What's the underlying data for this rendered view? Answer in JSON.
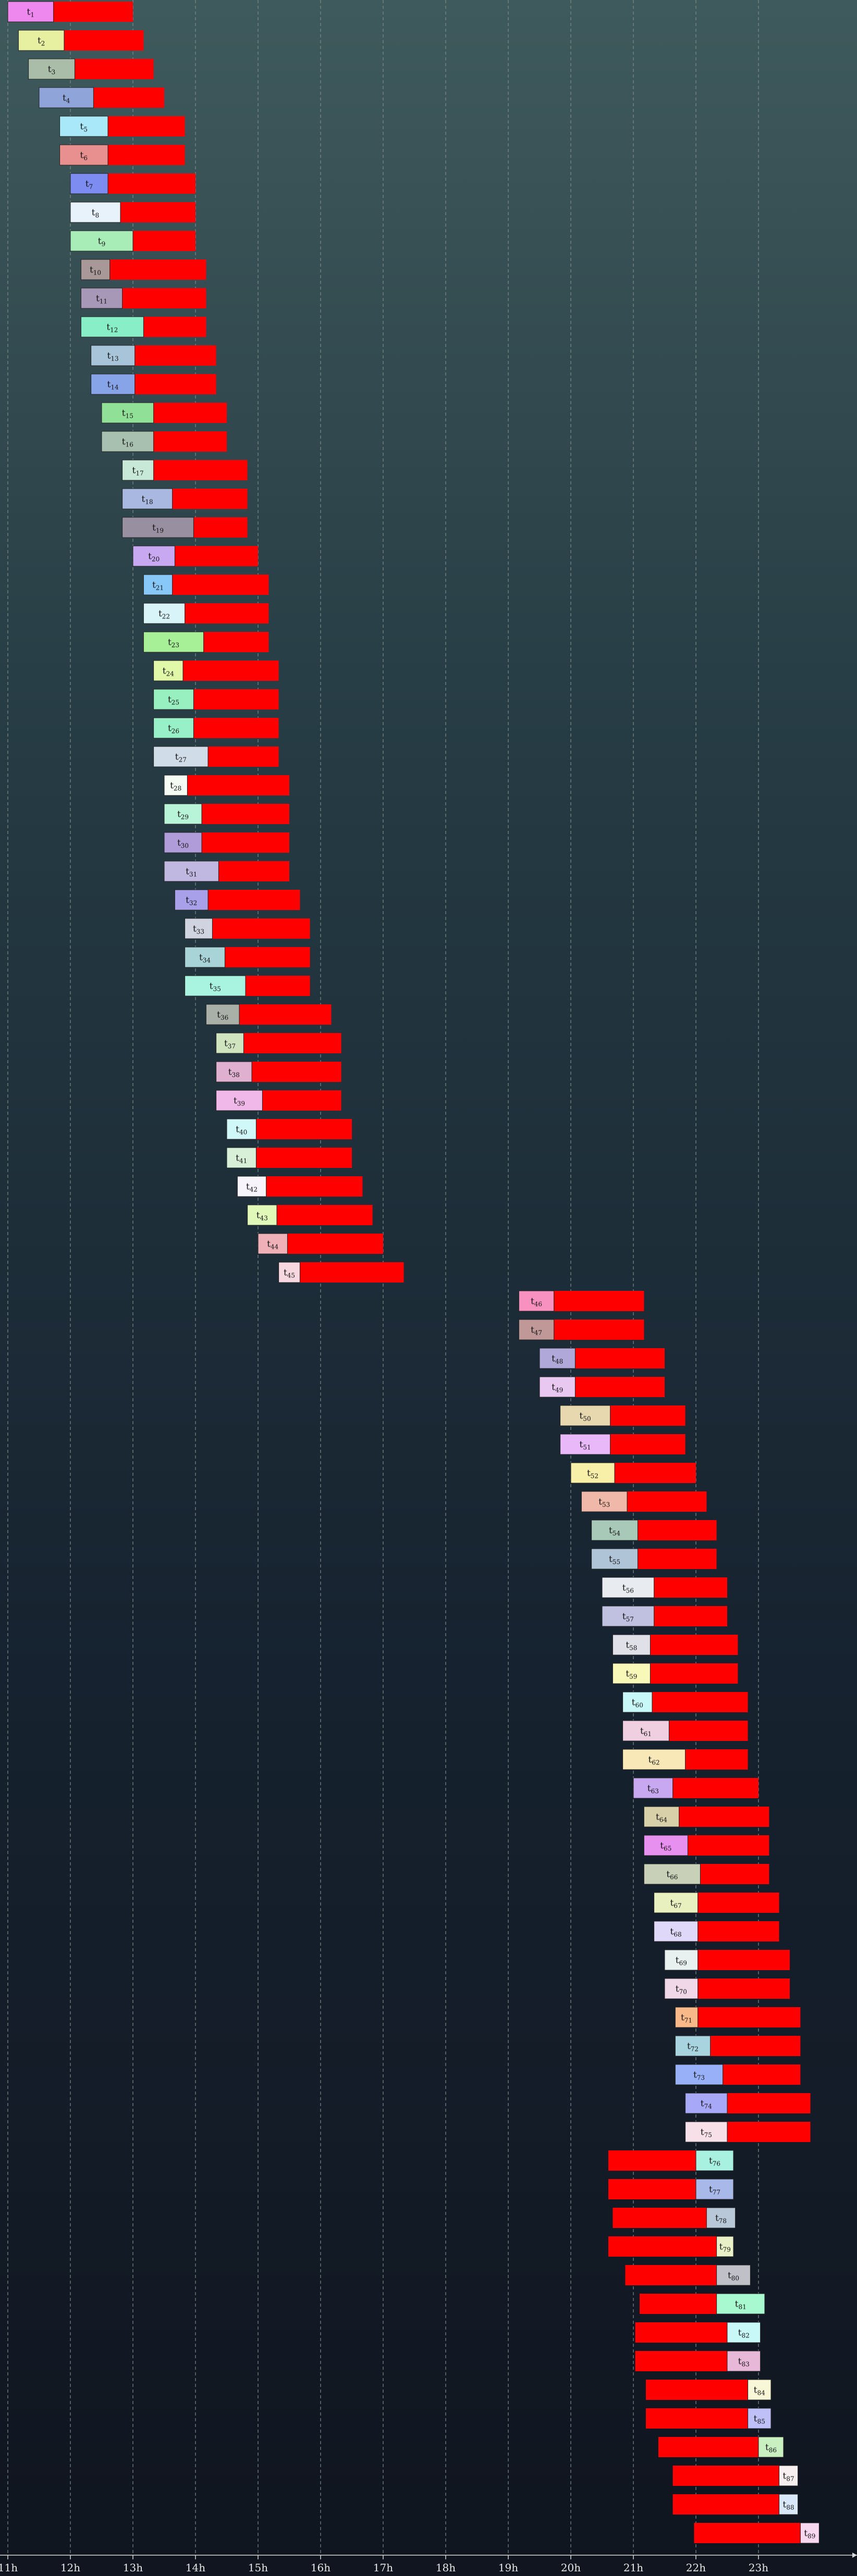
{
  "chart_data": {
    "type": "gantt",
    "title": "",
    "xlabel": "",
    "ylabel": "",
    "x_axis": {
      "unit": "hour of day",
      "range": [
        11,
        24.5
      ],
      "ticks": [
        11,
        12,
        13,
        14,
        15,
        16,
        17,
        18,
        19,
        20,
        21,
        22,
        23
      ],
      "tick_labels": [
        "11h",
        "12h",
        "13h",
        "14h",
        "15h",
        "16h",
        "17h",
        "18h",
        "19h",
        "20h",
        "21h",
        "22h",
        "23h"
      ],
      "grid": true
    },
    "colors": {
      "delay_bar": "#ff0000",
      "grid": "#7f8c8c",
      "axis": "#d8d8d8"
    },
    "task_prefix": "t",
    "tasks": [
      {
        "id": "1",
        "label_start": 11.0,
        "label_end": 11.73,
        "bar_start": 11.73,
        "bar_end": 13.0,
        "color": "#ee88ee"
      },
      {
        "id": "2",
        "label_start": 11.17,
        "label_end": 11.9,
        "bar_start": 11.9,
        "bar_end": 13.17,
        "color": "#e6f0a0"
      },
      {
        "id": "3",
        "label_start": 11.33,
        "label_end": 12.07,
        "bar_start": 12.07,
        "bar_end": 13.33,
        "color": "#a9bda8"
      },
      {
        "id": "4",
        "label_start": 11.5,
        "label_end": 12.37,
        "bar_start": 12.37,
        "bar_end": 13.5,
        "color": "#8fa4d8"
      },
      {
        "id": "5",
        "label_start": 11.83,
        "label_end": 12.6,
        "bar_start": 12.6,
        "bar_end": 13.83,
        "color": "#a8e8f8"
      },
      {
        "id": "6",
        "label_start": 11.83,
        "label_end": 12.6,
        "bar_start": 12.6,
        "bar_end": 13.83,
        "color": "#e89090"
      },
      {
        "id": "7",
        "label_start": 12.0,
        "label_end": 12.6,
        "bar_start": 12.6,
        "bar_end": 14.0,
        "color": "#7c8cf0"
      },
      {
        "id": "8",
        "label_start": 12.0,
        "label_end": 12.8,
        "bar_start": 12.8,
        "bar_end": 14.0,
        "color": "#e8f2fa"
      },
      {
        "id": "9",
        "label_start": 12.0,
        "label_end": 13.0,
        "bar_start": 13.0,
        "bar_end": 14.0,
        "color": "#a8ecb8"
      },
      {
        "id": "10",
        "label_start": 12.17,
        "label_end": 12.63,
        "bar_start": 12.63,
        "bar_end": 14.17,
        "color": "#a89898"
      },
      {
        "id": "11",
        "label_start": 12.17,
        "label_end": 12.83,
        "bar_start": 12.83,
        "bar_end": 14.17,
        "color": "#a898b8"
      },
      {
        "id": "12",
        "label_start": 12.17,
        "label_end": 13.17,
        "bar_start": 13.17,
        "bar_end": 14.17,
        "color": "#88eec8"
      },
      {
        "id": "13",
        "label_start": 12.33,
        "label_end": 13.03,
        "bar_start": 13.03,
        "bar_end": 14.33,
        "color": "#a8c4d8"
      },
      {
        "id": "14",
        "label_start": 12.33,
        "label_end": 13.03,
        "bar_start": 13.03,
        "bar_end": 14.33,
        "color": "#88a4e8"
      },
      {
        "id": "15",
        "label_start": 12.5,
        "label_end": 13.33,
        "bar_start": 13.33,
        "bar_end": 14.5,
        "color": "#90e098"
      },
      {
        "id": "16",
        "label_start": 12.5,
        "label_end": 13.33,
        "bar_start": 13.33,
        "bar_end": 14.5,
        "color": "#a8c0b0"
      },
      {
        "id": "17",
        "label_start": 12.83,
        "label_end": 13.33,
        "bar_start": 13.33,
        "bar_end": 14.83,
        "color": "#c8e8d8"
      },
      {
        "id": "18",
        "label_start": 12.83,
        "label_end": 13.63,
        "bar_start": 13.63,
        "bar_end": 14.83,
        "color": "#a8b8e0"
      },
      {
        "id": "19",
        "label_start": 12.83,
        "label_end": 13.97,
        "bar_start": 13.97,
        "bar_end": 14.83,
        "color": "#9890a0"
      },
      {
        "id": "20",
        "label_start": 13.0,
        "label_end": 13.67,
        "bar_start": 13.67,
        "bar_end": 15.0,
        "color": "#c8a8f0"
      },
      {
        "id": "21",
        "label_start": 13.17,
        "label_end": 13.63,
        "bar_start": 13.63,
        "bar_end": 15.17,
        "color": "#88c8f8"
      },
      {
        "id": "22",
        "label_start": 13.17,
        "label_end": 13.83,
        "bar_start": 13.83,
        "bar_end": 15.17,
        "color": "#d8f4f8"
      },
      {
        "id": "23",
        "label_start": 13.17,
        "label_end": 14.13,
        "bar_start": 14.13,
        "bar_end": 15.17,
        "color": "#a8f098"
      },
      {
        "id": "24",
        "label_start": 13.33,
        "label_end": 13.8,
        "bar_start": 13.8,
        "bar_end": 15.33,
        "color": "#e0f8a8"
      },
      {
        "id": "25",
        "label_start": 13.33,
        "label_end": 13.97,
        "bar_start": 13.97,
        "bar_end": 15.33,
        "color": "#98f0c0"
      },
      {
        "id": "26",
        "label_start": 13.33,
        "label_end": 13.97,
        "bar_start": 13.97,
        "bar_end": 15.33,
        "color": "#98f0c8"
      },
      {
        "id": "27",
        "label_start": 13.33,
        "label_end": 14.2,
        "bar_start": 14.2,
        "bar_end": 15.33,
        "color": "#d0dce8"
      },
      {
        "id": "28",
        "label_start": 13.5,
        "label_end": 13.87,
        "bar_start": 13.87,
        "bar_end": 15.5,
        "color": "#f4fcf4"
      },
      {
        "id": "29",
        "label_start": 13.5,
        "label_end": 14.1,
        "bar_start": 14.1,
        "bar_end": 15.5,
        "color": "#b8f4d8"
      },
      {
        "id": "30",
        "label_start": 13.5,
        "label_end": 14.1,
        "bar_start": 14.1,
        "bar_end": 15.5,
        "color": "#b09cd8"
      },
      {
        "id": "31",
        "label_start": 13.5,
        "label_end": 14.37,
        "bar_start": 14.37,
        "bar_end": 15.5,
        "color": "#c0b8e0"
      },
      {
        "id": "32",
        "label_start": 13.67,
        "label_end": 14.2,
        "bar_start": 14.2,
        "bar_end": 15.67,
        "color": "#a8a0e8"
      },
      {
        "id": "33",
        "label_start": 13.83,
        "label_end": 14.27,
        "bar_start": 14.27,
        "bar_end": 15.83,
        "color": "#d0d4e0"
      },
      {
        "id": "34",
        "label_start": 13.83,
        "label_end": 14.47,
        "bar_start": 14.47,
        "bar_end": 15.83,
        "color": "#a8d4d8"
      },
      {
        "id": "35",
        "label_start": 13.83,
        "label_end": 14.8,
        "bar_start": 14.8,
        "bar_end": 15.83,
        "color": "#a8f4e0"
      },
      {
        "id": "36",
        "label_start": 14.17,
        "label_end": 14.7,
        "bar_start": 14.7,
        "bar_end": 16.17,
        "color": "#a8b0a8"
      },
      {
        "id": "37",
        "label_start": 14.33,
        "label_end": 14.77,
        "bar_start": 14.77,
        "bar_end": 16.33,
        "color": "#d0e4c0"
      },
      {
        "id": "38",
        "label_start": 14.33,
        "label_end": 14.9,
        "bar_start": 14.9,
        "bar_end": 16.33,
        "color": "#e0b0d0"
      },
      {
        "id": "39",
        "label_start": 14.33,
        "label_end": 15.07,
        "bar_start": 15.07,
        "bar_end": 16.33,
        "color": "#f0b8e8"
      },
      {
        "id": "40",
        "label_start": 14.5,
        "label_end": 14.97,
        "bar_start": 14.97,
        "bar_end": 16.5,
        "color": "#d0f8f8"
      },
      {
        "id": "41",
        "label_start": 14.5,
        "label_end": 14.97,
        "bar_start": 14.97,
        "bar_end": 16.5,
        "color": "#d8f0d8"
      },
      {
        "id": "42",
        "label_start": 14.67,
        "label_end": 15.13,
        "bar_start": 15.13,
        "bar_end": 16.67,
        "color": "#f8f4fc"
      },
      {
        "id": "43",
        "label_start": 14.83,
        "label_end": 15.3,
        "bar_start": 15.3,
        "bar_end": 16.83,
        "color": "#e0f8b8"
      },
      {
        "id": "44",
        "label_start": 15.0,
        "label_end": 15.47,
        "bar_start": 15.47,
        "bar_end": 17.0,
        "color": "#f0b0b8"
      },
      {
        "id": "45",
        "label_start": 15.33,
        "label_end": 15.67,
        "bar_start": 15.67,
        "bar_end": 17.33,
        "color": "#f8d8e0"
      },
      {
        "id": "46",
        "label_start": 19.17,
        "label_end": 19.73,
        "bar_start": 19.73,
        "bar_end": 21.17,
        "color": "#f890c0"
      },
      {
        "id": "47",
        "label_start": 19.17,
        "label_end": 19.73,
        "bar_start": 19.73,
        "bar_end": 21.17,
        "color": "#c09898"
      },
      {
        "id": "48",
        "label_start": 19.5,
        "label_end": 20.07,
        "bar_start": 20.07,
        "bar_end": 21.5,
        "color": "#b0a8d8"
      },
      {
        "id": "49",
        "label_start": 19.5,
        "label_end": 20.07,
        "bar_start": 20.07,
        "bar_end": 21.5,
        "color": "#e8c8f0"
      },
      {
        "id": "50",
        "label_start": 19.83,
        "label_end": 20.63,
        "bar_start": 20.63,
        "bar_end": 21.83,
        "color": "#e8d8b0"
      },
      {
        "id": "51",
        "label_start": 19.83,
        "label_end": 20.63,
        "bar_start": 20.63,
        "bar_end": 21.83,
        "color": "#e8b8f8"
      },
      {
        "id": "52",
        "label_start": 20.0,
        "label_end": 20.7,
        "bar_start": 20.7,
        "bar_end": 22.0,
        "color": "#f8f0a8"
      },
      {
        "id": "53",
        "label_start": 20.17,
        "label_end": 20.9,
        "bar_start": 20.9,
        "bar_end": 22.17,
        "color": "#f0b8a8"
      },
      {
        "id": "54",
        "label_start": 20.33,
        "label_end": 21.07,
        "bar_start": 21.07,
        "bar_end": 22.33,
        "color": "#a8c8b8"
      },
      {
        "id": "55",
        "label_start": 20.33,
        "label_end": 21.07,
        "bar_start": 21.07,
        "bar_end": 22.33,
        "color": "#b0c4d8"
      },
      {
        "id": "56",
        "label_start": 20.5,
        "label_end": 21.33,
        "bar_start": 21.33,
        "bar_end": 22.5,
        "color": "#e8ecf0"
      },
      {
        "id": "57",
        "label_start": 20.5,
        "label_end": 21.33,
        "bar_start": 21.33,
        "bar_end": 22.5,
        "color": "#c0c0e0"
      },
      {
        "id": "58",
        "label_start": 20.67,
        "label_end": 21.27,
        "bar_start": 21.27,
        "bar_end": 22.67,
        "color": "#e0e0e8"
      },
      {
        "id": "59",
        "label_start": 20.67,
        "label_end": 21.27,
        "bar_start": 21.27,
        "bar_end": 22.67,
        "color": "#f8f8b8"
      },
      {
        "id": "60",
        "label_start": 20.83,
        "label_end": 21.3,
        "bar_start": 21.3,
        "bar_end": 22.83,
        "color": "#c8f8f8"
      },
      {
        "id": "61",
        "label_start": 20.83,
        "label_end": 21.57,
        "bar_start": 21.57,
        "bar_end": 22.83,
        "color": "#f0d0e0"
      },
      {
        "id": "62",
        "label_start": 20.83,
        "label_end": 21.83,
        "bar_start": 21.83,
        "bar_end": 22.83,
        "color": "#f8e8b8"
      },
      {
        "id": "63",
        "label_start": 21.0,
        "label_end": 21.63,
        "bar_start": 21.63,
        "bar_end": 23.0,
        "color": "#c8a8f0"
      },
      {
        "id": "64",
        "label_start": 21.17,
        "label_end": 21.73,
        "bar_start": 21.73,
        "bar_end": 23.17,
        "color": "#d8d0a8"
      },
      {
        "id": "65",
        "label_start": 21.17,
        "label_end": 21.87,
        "bar_start": 21.87,
        "bar_end": 23.17,
        "color": "#e890f0"
      },
      {
        "id": "66",
        "label_start": 21.17,
        "label_end": 22.07,
        "bar_start": 22.07,
        "bar_end": 23.17,
        "color": "#c8d0b8"
      },
      {
        "id": "67",
        "label_start": 21.33,
        "label_end": 22.03,
        "bar_start": 22.03,
        "bar_end": 23.33,
        "color": "#e8f0c0"
      },
      {
        "id": "68",
        "label_start": 21.33,
        "label_end": 22.03,
        "bar_start": 22.03,
        "bar_end": 23.33,
        "color": "#e0d8f8"
      },
      {
        "id": "69",
        "label_start": 21.5,
        "label_end": 22.03,
        "bar_start": 22.03,
        "bar_end": 23.5,
        "color": "#e8f0f0"
      },
      {
        "id": "70",
        "label_start": 21.5,
        "label_end": 22.03,
        "bar_start": 22.03,
        "bar_end": 23.5,
        "color": "#f0d8e8"
      },
      {
        "id": "71",
        "label_start": 21.67,
        "label_end": 22.03,
        "bar_start": 22.03,
        "bar_end": 23.67,
        "color": "#f8b888"
      },
      {
        "id": "72",
        "label_start": 21.67,
        "label_end": 22.23,
        "bar_start": 22.23,
        "bar_end": 23.67,
        "color": "#a8d4e0"
      },
      {
        "id": "73",
        "label_start": 21.67,
        "label_end": 22.43,
        "bar_start": 22.43,
        "bar_end": 23.67,
        "color": "#98b0f8"
      },
      {
        "id": "74",
        "label_start": 21.83,
        "label_end": 22.5,
        "bar_start": 22.5,
        "bar_end": 23.83,
        "color": "#a8a8f8"
      },
      {
        "id": "75",
        "label_start": 21.83,
        "label_end": 22.5,
        "bar_start": 22.5,
        "bar_end": 23.83,
        "color": "#f8e0e8"
      },
      {
        "id": "76",
        "label_start": 22.0,
        "label_end": 22.6,
        "bar_start": 20.6,
        "bar_end": 22.0,
        "color": "#a8f0e0"
      },
      {
        "id": "77",
        "label_start": 22.0,
        "label_end": 22.6,
        "bar_start": 20.6,
        "bar_end": 22.0,
        "color": "#a8b8e8"
      },
      {
        "id": "78",
        "label_start": 22.17,
        "label_end": 22.63,
        "bar_start": 20.67,
        "bar_end": 22.17,
        "color": "#b8c8d8"
      },
      {
        "id": "79",
        "label_start": 22.33,
        "label_end": 22.6,
        "bar_start": 20.6,
        "bar_end": 22.33,
        "color": "#e8f0c8"
      },
      {
        "id": "80",
        "label_start": 22.33,
        "label_end": 22.87,
        "bar_start": 20.87,
        "bar_end": 22.33,
        "color": "#c0c0c8"
      },
      {
        "id": "81",
        "label_start": 22.33,
        "label_end": 23.1,
        "bar_start": 21.1,
        "bar_end": 22.33,
        "color": "#a8f8d0"
      },
      {
        "id": "82",
        "label_start": 22.5,
        "label_end": 23.03,
        "bar_start": 21.03,
        "bar_end": 22.5,
        "color": "#c8f8f8"
      },
      {
        "id": "83",
        "label_start": 22.5,
        "label_end": 23.03,
        "bar_start": 21.03,
        "bar_end": 22.5,
        "color": "#e8b8d8"
      },
      {
        "id": "84",
        "label_start": 22.83,
        "label_end": 23.2,
        "bar_start": 21.2,
        "bar_end": 22.83,
        "color": "#f8f8d8"
      },
      {
        "id": "85",
        "label_start": 22.83,
        "label_end": 23.2,
        "bar_start": 21.2,
        "bar_end": 22.83,
        "color": "#c0c0f8"
      },
      {
        "id": "86",
        "label_start": 23.0,
        "label_end": 23.4,
        "bar_start": 21.4,
        "bar_end": 23.0,
        "color": "#c8f0c0"
      },
      {
        "id": "87",
        "label_start": 23.33,
        "label_end": 23.63,
        "bar_start": 21.63,
        "bar_end": 23.33,
        "color": "#f8f0f0"
      },
      {
        "id": "88",
        "label_start": 23.33,
        "label_end": 23.63,
        "bar_start": 21.63,
        "bar_end": 23.33,
        "color": "#d8e8f8"
      },
      {
        "id": "89",
        "label_start": 23.67,
        "label_end": 23.97,
        "bar_start": 21.97,
        "bar_end": 23.67,
        "color": "#f8d8f0"
      }
    ]
  }
}
